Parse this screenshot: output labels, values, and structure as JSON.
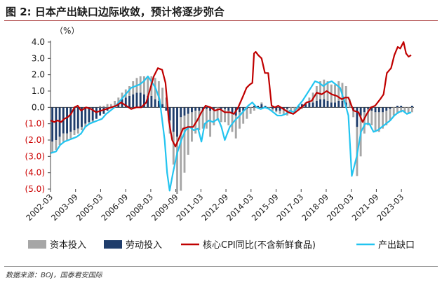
{
  "title": "图 2:  日本产出缺口边际收敛，预计将逐步弥合",
  "source": "数据来源：BOJ，国泰君安国际",
  "chart_data": {
    "type": "bar",
    "unit_label": "（%）",
    "ylim": [
      -5.0,
      4.0
    ],
    "yticks": [
      {
        "v": 4.0,
        "label": "4.0",
        "color": "#1a1a1a"
      },
      {
        "v": 3.0,
        "label": "3.0",
        "color": "#1a1a1a"
      },
      {
        "v": 2.0,
        "label": "2.0",
        "color": "#1a1a1a"
      },
      {
        "v": 1.0,
        "label": "1.0",
        "color": "#1a1a1a"
      },
      {
        "v": 0.0,
        "label": "0.0",
        "color": "#1a1a1a"
      },
      {
        "v": -1.0,
        "label": "(1.0)",
        "color": "#cc0000"
      },
      {
        "v": -2.0,
        "label": "(2.0)",
        "color": "#cc0000"
      },
      {
        "v": -3.0,
        "label": "(3.0)",
        "color": "#cc0000"
      },
      {
        "v": -4.0,
        "label": "(4.0)",
        "color": "#cc0000"
      },
      {
        "v": -5.0,
        "label": "(5.0)",
        "color": "#cc0000"
      }
    ],
    "xlim": [
      2002.17,
      2023.92
    ],
    "xticks": [
      {
        "v": 2002.17,
        "label": "2002-03"
      },
      {
        "v": 2003.67,
        "label": "2003-09"
      },
      {
        "v": 2005.17,
        "label": "2005-03"
      },
      {
        "v": 2006.67,
        "label": "2006-09"
      },
      {
        "v": 2008.17,
        "label": "2008-03"
      },
      {
        "v": 2009.67,
        "label": "2009-09"
      },
      {
        "v": 2011.17,
        "label": "2011-03"
      },
      {
        "v": 2012.67,
        "label": "2012-09"
      },
      {
        "v": 2014.17,
        "label": "2014-03"
      },
      {
        "v": 2015.67,
        "label": "2015-09"
      },
      {
        "v": 2017.17,
        "label": "2017-03"
      },
      {
        "v": 2018.67,
        "label": "2018-09"
      },
      {
        "v": 2020.17,
        "label": "2020-03"
      },
      {
        "v": 2021.67,
        "label": "2021-09"
      },
      {
        "v": 2023.17,
        "label": "2023-03"
      }
    ],
    "legend": [
      {
        "name": "资本投入",
        "type": "bar",
        "color": "#a6a6a6"
      },
      {
        "name": "劳动投入",
        "type": "bar",
        "color": "#1f3d6b"
      },
      {
        "name": "核心CPI同比(不含新鲜食品)",
        "type": "line",
        "color": "#c00000"
      },
      {
        "name": "产出缺口",
        "type": "line",
        "color": "#22c4f0"
      }
    ],
    "series": [
      {
        "name": "产出缺口",
        "kind": "line",
        "color": "#22c4f0",
        "points": [
          [
            2002.17,
            -2.8
          ],
          [
            2002.5,
            -2.7
          ],
          [
            2002.75,
            -2.3
          ],
          [
            2003.0,
            -2.1
          ],
          [
            2003.25,
            -2.0
          ],
          [
            2003.5,
            -1.9
          ],
          [
            2003.75,
            -1.8
          ],
          [
            2004.0,
            -1.6
          ],
          [
            2004.25,
            -1.2
          ],
          [
            2004.5,
            -1.0
          ],
          [
            2004.75,
            -0.9
          ],
          [
            2005.0,
            -0.8
          ],
          [
            2005.25,
            -0.7
          ],
          [
            2005.5,
            -0.4
          ],
          [
            2005.75,
            -0.2
          ],
          [
            2006.0,
            0.0
          ],
          [
            2006.25,
            0.3
          ],
          [
            2006.5,
            0.6
          ],
          [
            2006.75,
            0.9
          ],
          [
            2007.0,
            1.2
          ],
          [
            2007.25,
            1.3
          ],
          [
            2007.5,
            1.4
          ],
          [
            2007.75,
            1.6
          ],
          [
            2008.0,
            1.9
          ],
          [
            2008.2,
            1.6
          ],
          [
            2008.45,
            1.2
          ],
          [
            2008.7,
            0.5
          ],
          [
            2009.0,
            -2.0
          ],
          [
            2009.15,
            -4.0
          ],
          [
            2009.3,
            -5.1
          ],
          [
            2009.5,
            -4.0
          ],
          [
            2009.75,
            -2.8
          ],
          [
            2010.0,
            -2.0
          ],
          [
            2010.25,
            -1.4
          ],
          [
            2010.5,
            -1.2
          ],
          [
            2010.75,
            -1.4
          ],
          [
            2011.0,
            -1.3
          ],
          [
            2011.2,
            -2.1
          ],
          [
            2011.4,
            -1.0
          ],
          [
            2011.65,
            -0.8
          ],
          [
            2011.9,
            -0.9
          ],
          [
            2012.2,
            -0.7
          ],
          [
            2012.4,
            -1.2
          ],
          [
            2012.6,
            -2.0
          ],
          [
            2012.9,
            -1.2
          ],
          [
            2013.2,
            -0.8
          ],
          [
            2013.5,
            -0.5
          ],
          [
            2013.75,
            -0.2
          ],
          [
            2014.0,
            0.1
          ],
          [
            2014.25,
            0.3
          ],
          [
            2014.5,
            0.0
          ],
          [
            2014.75,
            -0.1
          ],
          [
            2015.0,
            0.0
          ],
          [
            2015.25,
            -0.1
          ],
          [
            2015.5,
            -0.3
          ],
          [
            2015.75,
            -0.5
          ],
          [
            2016.0,
            -0.5
          ],
          [
            2016.25,
            -0.4
          ],
          [
            2016.5,
            -0.2
          ],
          [
            2016.75,
            -0.3
          ],
          [
            2017.0,
            0.1
          ],
          [
            2017.25,
            0.4
          ],
          [
            2017.5,
            0.8
          ],
          [
            2017.75,
            1.2
          ],
          [
            2018.0,
            1.6
          ],
          [
            2018.25,
            1.5
          ],
          [
            2018.5,
            1.3
          ],
          [
            2018.75,
            1.5
          ],
          [
            2019.0,
            1.6
          ],
          [
            2019.25,
            1.4
          ],
          [
            2019.5,
            1.2
          ],
          [
            2019.75,
            0.4
          ],
          [
            2020.0,
            -0.5
          ],
          [
            2020.2,
            -4.2
          ],
          [
            2020.5,
            -3.0
          ],
          [
            2020.75,
            -1.5
          ],
          [
            2021.0,
            -1.0
          ],
          [
            2021.25,
            -1.0
          ],
          [
            2021.5,
            -1.5
          ],
          [
            2021.75,
            -1.4
          ],
          [
            2022.0,
            -1.2
          ],
          [
            2022.25,
            -1.0
          ],
          [
            2022.5,
            -0.8
          ],
          [
            2022.75,
            -0.5
          ],
          [
            2023.0,
            -0.3
          ],
          [
            2023.25,
            -0.2
          ],
          [
            2023.5,
            -0.4
          ],
          [
            2023.75,
            -0.3
          ]
        ]
      },
      {
        "name": "核心CPI同比(不含新鲜食品)",
        "kind": "line",
        "color": "#c00000",
        "points": [
          [
            2002.17,
            -0.8
          ],
          [
            2002.4,
            -0.9
          ],
          [
            2002.6,
            -0.8
          ],
          [
            2002.8,
            -0.9
          ],
          [
            2003.0,
            -0.7
          ],
          [
            2003.2,
            -0.6
          ],
          [
            2003.4,
            -0.4
          ],
          [
            2003.6,
            0.0
          ],
          [
            2003.8,
            0.1
          ],
          [
            2004.0,
            -0.2
          ],
          [
            2004.3,
            0.0
          ],
          [
            2004.6,
            -0.1
          ],
          [
            2004.9,
            -0.3
          ],
          [
            2005.2,
            -0.2
          ],
          [
            2005.5,
            -0.1
          ],
          [
            2005.8,
            0.0
          ],
          [
            2006.1,
            0.1
          ],
          [
            2006.4,
            0.3
          ],
          [
            2006.7,
            0.1
          ],
          [
            2007.0,
            -0.1
          ],
          [
            2007.3,
            0.0
          ],
          [
            2007.6,
            0.0
          ],
          [
            2007.9,
            0.3
          ],
          [
            2008.1,
            1.0
          ],
          [
            2008.35,
            1.9
          ],
          [
            2008.6,
            2.4
          ],
          [
            2008.85,
            2.3
          ],
          [
            2009.05,
            1.5
          ],
          [
            2009.25,
            -0.8
          ],
          [
            2009.45,
            -2.0
          ],
          [
            2009.65,
            -2.4
          ],
          [
            2009.9,
            -1.8
          ],
          [
            2010.1,
            -1.3
          ],
          [
            2010.4,
            -1.2
          ],
          [
            2010.7,
            -1.2
          ],
          [
            2010.95,
            -0.8
          ],
          [
            2011.2,
            -0.3
          ],
          [
            2011.45,
            0.1
          ],
          [
            2011.75,
            0.0
          ],
          [
            2012.0,
            -0.2
          ],
          [
            2012.3,
            -0.1
          ],
          [
            2012.6,
            -0.3
          ],
          [
            2012.9,
            -0.3
          ],
          [
            2013.15,
            -0.4
          ],
          [
            2013.4,
            0.0
          ],
          [
            2013.7,
            0.7
          ],
          [
            2013.9,
            1.2
          ],
          [
            2014.1,
            1.4
          ],
          [
            2014.25,
            1.5
          ],
          [
            2014.35,
            3.3
          ],
          [
            2014.45,
            3.4
          ],
          [
            2014.6,
            3.2
          ],
          [
            2014.8,
            3.0
          ],
          [
            2015.0,
            2.1
          ],
          [
            2015.2,
            2.1
          ],
          [
            2015.4,
            0.1
          ],
          [
            2015.6,
            0.0
          ],
          [
            2015.8,
            0.1
          ],
          [
            2016.1,
            -0.1
          ],
          [
            2016.4,
            -0.3
          ],
          [
            2016.7,
            -0.4
          ],
          [
            2016.95,
            -0.2
          ],
          [
            2017.2,
            0.0
          ],
          [
            2017.5,
            0.3
          ],
          [
            2017.8,
            0.4
          ],
          [
            2018.1,
            0.9
          ],
          [
            2018.4,
            0.8
          ],
          [
            2018.7,
            1.0
          ],
          [
            2019.0,
            0.8
          ],
          [
            2019.3,
            0.7
          ],
          [
            2019.6,
            0.5
          ],
          [
            2019.8,
            0.6
          ],
          [
            2020.0,
            0.6
          ],
          [
            2020.3,
            -0.2
          ],
          [
            2020.6,
            -0.3
          ],
          [
            2020.85,
            -0.9
          ],
          [
            2021.1,
            -0.4
          ],
          [
            2021.35,
            0.0
          ],
          [
            2021.6,
            0.1
          ],
          [
            2021.9,
            0.5
          ],
          [
            2022.1,
            0.8
          ],
          [
            2022.3,
            2.1
          ],
          [
            2022.55,
            2.4
          ],
          [
            2022.75,
            3.2
          ],
          [
            2022.95,
            3.7
          ],
          [
            2023.1,
            3.6
          ],
          [
            2023.3,
            4.0
          ],
          [
            2023.45,
            3.3
          ],
          [
            2023.6,
            3.1
          ],
          [
            2023.75,
            3.2
          ]
        ]
      },
      {
        "name": "资本投入",
        "kind": "bar",
        "color": "#a6a6a6",
        "values": [
          -0.7,
          -0.6,
          -0.5,
          -0.5,
          -0.4,
          -0.4,
          -0.3,
          -0.3,
          -0.2,
          -0.2,
          -0.1,
          -0.1,
          0.0,
          0.1,
          0.1,
          0.2,
          0.2,
          0.3,
          0.3,
          0.4,
          0.5,
          0.6,
          0.8,
          0.9,
          1.0,
          1.1,
          1.1,
          1.2,
          1.3,
          1.2,
          1.0,
          0.6,
          -0.8,
          -2.0,
          -3.5,
          -4.5,
          -3.5,
          -2.5,
          -1.8,
          -1.4,
          -1.2,
          -1.1,
          -1.2,
          -1.6,
          -1.0,
          -0.8,
          -0.8,
          -0.8,
          -0.9,
          -1.1,
          -1.4,
          -1.0,
          -0.8,
          -0.6,
          -0.4,
          -0.2,
          0.0,
          0.1,
          0.0,
          -0.1,
          -0.1,
          -0.1,
          -0.2,
          -0.3,
          -0.4,
          -0.4,
          -0.3,
          -0.2,
          -0.1,
          0.1,
          0.3,
          0.6,
          0.9,
          1.1,
          1.2,
          1.2,
          1.1,
          1.1,
          1.2,
          1.1,
          1.0,
          0.5,
          -0.4,
          -3.0,
          -2.5,
          -1.3,
          -1.0,
          -0.9,
          -1.2,
          -1.2,
          -1.0,
          -0.9,
          -0.7,
          -0.5,
          -0.4,
          -0.3,
          -0.3,
          -0.4,
          -0.3
        ]
      },
      {
        "name": "劳动投入",
        "kind": "bar",
        "color": "#1f3d6b",
        "values": [
          -2.1,
          -2.0,
          -1.8,
          -1.6,
          -1.6,
          -1.5,
          -1.4,
          -1.3,
          -1.2,
          -1.0,
          -0.9,
          -0.8,
          -0.7,
          -0.5,
          -0.4,
          -0.2,
          0.0,
          0.1,
          0.3,
          0.5,
          0.6,
          0.7,
          0.8,
          0.9,
          0.9,
          0.8,
          0.7,
          0.7,
          0.5,
          0.4,
          0.2,
          -0.2,
          -0.8,
          -1.5,
          -1.8,
          -0.6,
          -0.5,
          -0.4,
          -0.3,
          -0.2,
          -0.2,
          -0.2,
          -0.1,
          -0.2,
          -0.1,
          0.0,
          -0.1,
          -0.1,
          -0.2,
          -0.4,
          -0.5,
          -0.3,
          -0.2,
          -0.1,
          0.0,
          0.1,
          0.1,
          0.2,
          0.1,
          0.0,
          -0.1,
          -0.2,
          -0.2,
          -0.1,
          -0.1,
          0.0,
          0.0,
          0.1,
          0.2,
          0.2,
          0.3,
          0.3,
          0.4,
          0.5,
          0.5,
          0.4,
          0.3,
          0.3,
          0.4,
          0.4,
          0.3,
          0.0,
          -0.2,
          -1.2,
          -0.5,
          -0.3,
          -0.1,
          -0.2,
          -0.3,
          -0.3,
          -0.3,
          -0.2,
          -0.1,
          0.0,
          0.1,
          0.1,
          0.0,
          0.0,
          0.1
        ]
      }
    ]
  }
}
